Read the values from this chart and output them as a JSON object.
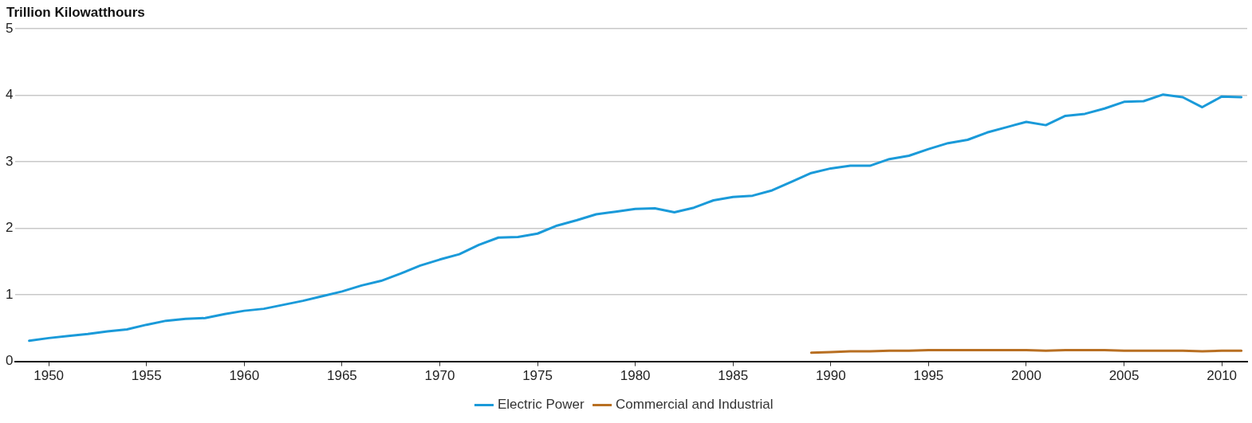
{
  "chart_data": {
    "type": "line",
    "ylabel": "Trillion Kilowatthours",
    "x": [
      1949,
      1950,
      1951,
      1952,
      1953,
      1954,
      1955,
      1956,
      1957,
      1958,
      1959,
      1960,
      1961,
      1962,
      1963,
      1964,
      1965,
      1966,
      1967,
      1968,
      1969,
      1970,
      1971,
      1972,
      1973,
      1974,
      1975,
      1976,
      1977,
      1978,
      1979,
      1980,
      1981,
      1982,
      1983,
      1984,
      1985,
      1986,
      1987,
      1988,
      1989,
      1990,
      1991,
      1992,
      1993,
      1994,
      1995,
      1996,
      1997,
      1998,
      1999,
      2000,
      2001,
      2002,
      2003,
      2004,
      2005,
      2006,
      2007,
      2008,
      2009,
      2010,
      2011
    ],
    "series": [
      {
        "name": "Electric Power",
        "color": "#1a9ad9",
        "values": [
          0.31,
          0.35,
          0.38,
          0.41,
          0.45,
          0.48,
          0.55,
          0.61,
          0.64,
          0.65,
          0.71,
          0.76,
          0.79,
          0.85,
          0.91,
          0.98,
          1.05,
          1.14,
          1.21,
          1.32,
          1.44,
          1.53,
          1.61,
          1.75,
          1.86,
          1.87,
          1.92,
          2.04,
          2.12,
          2.21,
          2.25,
          2.29,
          2.3,
          2.24,
          2.31,
          2.42,
          2.47,
          2.49,
          2.57,
          2.7,
          2.83,
          2.9,
          2.94,
          2.94,
          3.04,
          3.09,
          3.19,
          3.28,
          3.33,
          3.44,
          3.52,
          3.6,
          3.55,
          3.69,
          3.72,
          3.8,
          3.9,
          3.91,
          4.01,
          3.97,
          3.82,
          3.98,
          3.97
        ]
      },
      {
        "name": "Commercial and Industrial",
        "color": "#b86f22",
        "values": [
          null,
          null,
          null,
          null,
          null,
          null,
          null,
          null,
          null,
          null,
          null,
          null,
          null,
          null,
          null,
          null,
          null,
          null,
          null,
          null,
          null,
          null,
          null,
          null,
          null,
          null,
          null,
          null,
          null,
          null,
          null,
          null,
          null,
          null,
          null,
          null,
          null,
          null,
          null,
          null,
          0.13,
          0.14,
          0.15,
          0.15,
          0.16,
          0.16,
          0.17,
          0.17,
          0.17,
          0.17,
          0.17,
          0.17,
          0.16,
          0.17,
          0.17,
          0.17,
          0.16,
          0.16,
          0.16,
          0.16,
          0.15,
          0.16,
          0.16
        ]
      }
    ],
    "xlim": [
      1948.3,
      2011.3
    ],
    "xticks": [
      1950,
      1955,
      1960,
      1965,
      1970,
      1975,
      1980,
      1985,
      1990,
      1995,
      2000,
      2005,
      2010
    ],
    "ylim": [
      0,
      5
    ],
    "yticks": [
      0,
      1,
      2,
      3,
      4,
      5
    ],
    "grid": "y",
    "legend": "bottom",
    "marker": "none",
    "line_style": "solid"
  }
}
